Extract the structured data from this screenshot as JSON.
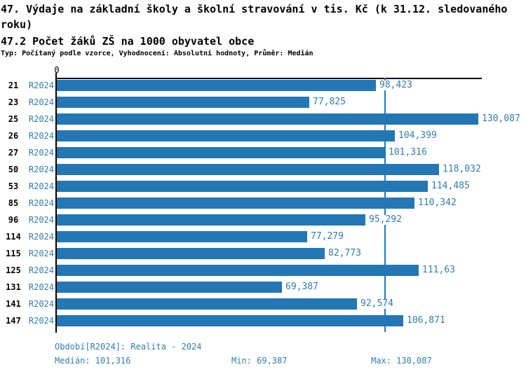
{
  "title": {
    "line1": "47. Výdaje na základní školy a školní stravování v tis. Kč (k 31.12. sledovaného roku)",
    "line2": "47.2 Počet žáků ZŠ na 1000 obyvatel obce",
    "meta": "Typ: Počítaný podle vzorce, Vyhodnocení: Absolutní hodnoty, Průměr: Medián"
  },
  "axis": {
    "zero_label": "0"
  },
  "chart_data": {
    "type": "bar",
    "orientation": "horizontal",
    "title": "47.2 Počet žáků ZŠ na 1000 obyvatel obce",
    "series_label": "R2024",
    "categories": [
      "21",
      "23",
      "25",
      "26",
      "27",
      "50",
      "53",
      "85",
      "96",
      "114",
      "115",
      "125",
      "131",
      "141",
      "147"
    ],
    "values": [
      98.423,
      77.825,
      130.087,
      104.399,
      101.316,
      118.032,
      114.485,
      110.342,
      95.292,
      77.279,
      82.773,
      111.63,
      69.387,
      92.574,
      106.871
    ],
    "value_labels": [
      "98,423",
      "77,825",
      "130,087",
      "104,399",
      "101,316",
      "118,032",
      "114,485",
      "110,342",
      "95,292",
      "77,279",
      "82,773",
      "111,63",
      "69,387",
      "92,574",
      "106,871"
    ],
    "xlim": [
      0,
      131.4
    ],
    "median": 101.316,
    "grid": false,
    "legend_position": "none",
    "bar_color": "#2377b4",
    "median_line_color": "#2377b4"
  },
  "footer": {
    "period": "Období[R2024]: Realita - 2024",
    "median": "Medián: 101,316",
    "min": "Min: 69,387",
    "max": "Max: 130,087"
  }
}
